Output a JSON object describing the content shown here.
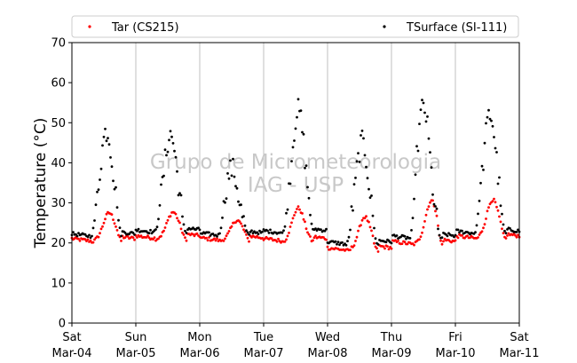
{
  "chart_data": {
    "type": "scatter",
    "xlabel": "",
    "ylabel": "Temperature (°C)",
    "ylim": [
      0,
      70
    ],
    "yticks": [
      0,
      10,
      20,
      30,
      40,
      50,
      60,
      70
    ],
    "xlim": [
      "2023-03-04 00:00",
      "2023-03-11 00:00"
    ],
    "x_ticks": [
      {
        "day": "Sat",
        "date": "Mar-04"
      },
      {
        "day": "Sun",
        "date": "Mar-05"
      },
      {
        "day": "Mon",
        "date": "Mar-06"
      },
      {
        "day": "Tue",
        "date": "Mar-07"
      },
      {
        "day": "Wed",
        "date": "Mar-08"
      },
      {
        "day": "Thu",
        "date": "Mar-09"
      },
      {
        "day": "Fri",
        "date": "Mar-10"
      },
      {
        "day": "Sat",
        "date": "Mar-11"
      }
    ],
    "grid": "vertical",
    "legend_position": "top",
    "watermark": [
      "Grupo de Micrometeorologia",
      "IAG - USP"
    ],
    "series": [
      {
        "name": "Tar (CS215)",
        "color": "#ff0000",
        "daily_min": [
          20.3,
          21.0,
          20.5,
          20.3,
          18.0,
          19.6,
          21.0
        ],
        "daily_max": [
          27.5,
          27.7,
          25.7,
          28.7,
          26.5,
          30.5,
          30.8
        ],
        "peak_hour": [
          14,
          14,
          14,
          13,
          14,
          15,
          14
        ]
      },
      {
        "name": "TSurface (SI-111)",
        "color": "#000000",
        "daily_min": [
          21.5,
          22.5,
          21.7,
          22.3,
          19.5,
          21.0,
          22.2
        ],
        "daily_max": [
          48.0,
          47.0,
          38.5,
          53.0,
          45.0,
          54.0,
          52.0
        ],
        "peak_hour": [
          13,
          13,
          12,
          13,
          13,
          12,
          13
        ]
      }
    ]
  }
}
